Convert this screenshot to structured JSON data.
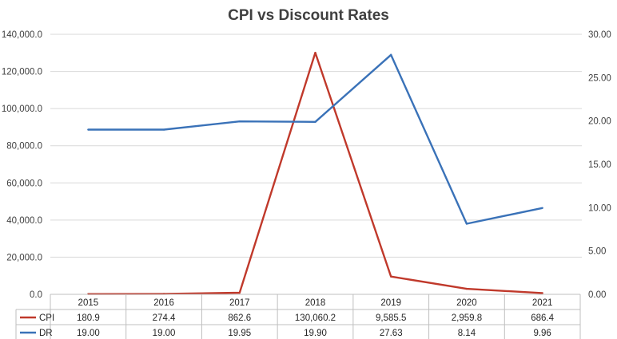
{
  "chart_data": {
    "type": "line",
    "title": "CPI vs Discount Rates",
    "categories": [
      "2015",
      "2016",
      "2017",
      "2018",
      "2019",
      "2020",
      "2021"
    ],
    "series": [
      {
        "name": "CPI",
        "axis": "left",
        "color": "#c0392b",
        "values": [
          180.9,
          274.4,
          862.6,
          130060.2,
          9585.5,
          2959.8,
          686.4
        ],
        "labels": [
          "180.9",
          "274.4",
          "862.6",
          "130,060.2",
          "9,585.5",
          "2,959.8",
          "686.4"
        ]
      },
      {
        "name": "DR",
        "axis": "right",
        "color": "#3a72b8",
        "values": [
          19.0,
          19.0,
          19.95,
          19.9,
          27.63,
          8.14,
          9.96
        ],
        "labels": [
          "19.00",
          "19.00",
          "19.95",
          "19.90",
          "27.63",
          "8.14",
          "9.96"
        ]
      }
    ],
    "y_left": {
      "ylim": [
        0,
        140000
      ],
      "ticks": [
        0,
        20000,
        40000,
        60000,
        80000,
        100000,
        120000,
        140000
      ],
      "tick_labels": [
        "0.0",
        "20,000.0",
        "40,000.0",
        "60,000.0",
        "80,000.0",
        "100,000.0",
        "120,000.0",
        "140,000.0"
      ]
    },
    "y_right": {
      "ylim": [
        0,
        30
      ],
      "ticks": [
        0,
        5,
        10,
        15,
        20,
        25,
        30
      ],
      "tick_labels": [
        "0.00",
        "5.00",
        "10.00",
        "15.00",
        "20.00",
        "25.00",
        "30.00"
      ]
    },
    "grid": true,
    "legend": "data-table-below"
  }
}
